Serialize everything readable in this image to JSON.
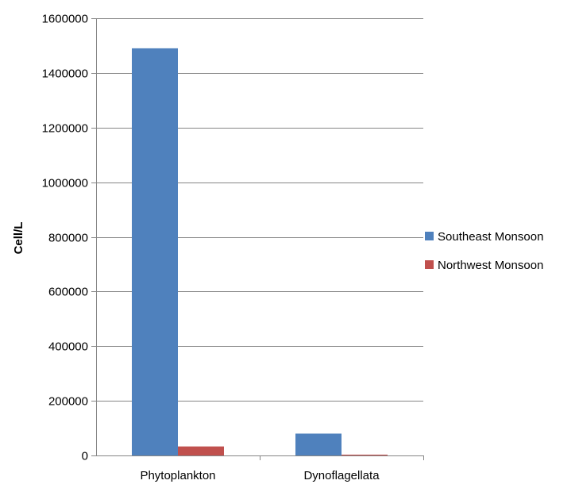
{
  "chart_data": {
    "type": "bar",
    "title": "",
    "xlabel": "",
    "ylabel": "Cell/L",
    "categories": [
      "Phytoplankton",
      "Dynoflagellata"
    ],
    "series": [
      {
        "name": "Southeast Monsoon",
        "values": [
          1490000,
          80000
        ],
        "color": "#4f81bd"
      },
      {
        "name": "Northwest Monsoon",
        "values": [
          33000,
          3000
        ],
        "color": "#c0504d"
      }
    ],
    "ylim": [
      0,
      1600000
    ],
    "yticks": [
      0,
      200000,
      400000,
      600000,
      800000,
      1000000,
      1200000,
      1400000,
      1600000
    ],
    "grid": true,
    "legend_position": "right"
  }
}
